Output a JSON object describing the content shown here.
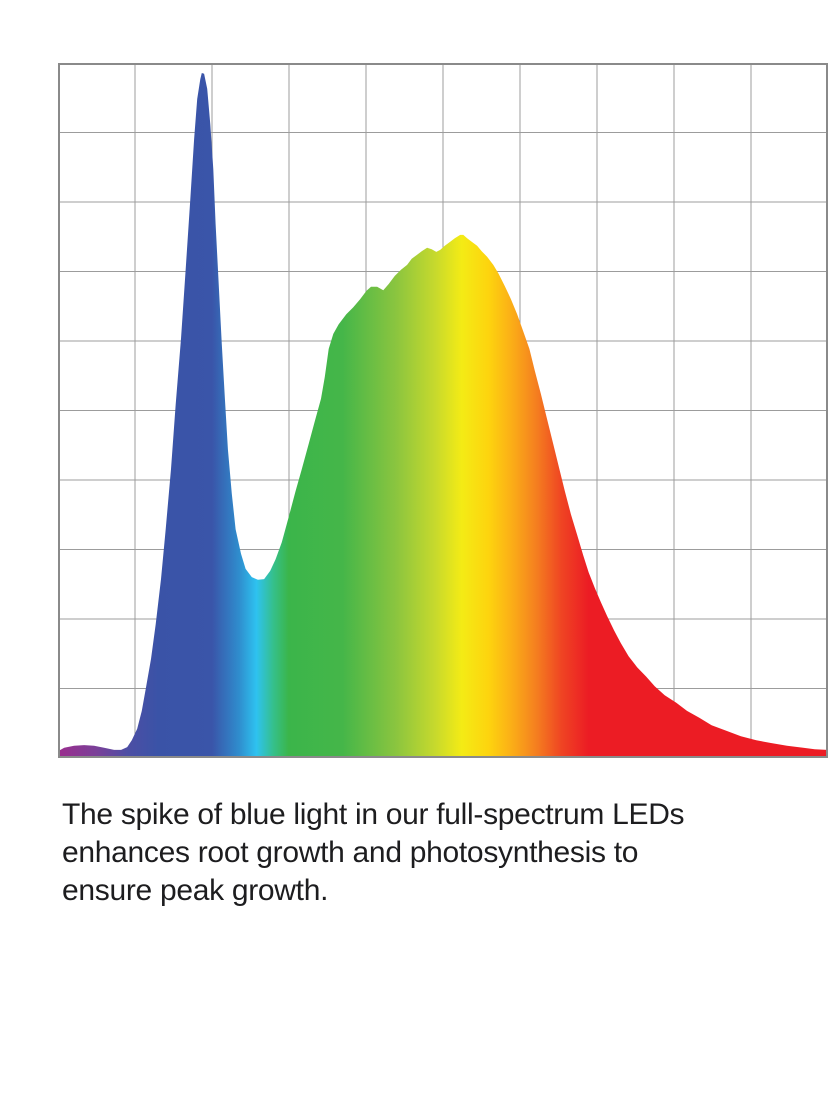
{
  "caption": {
    "text": "The spike of blue light in our full-spectrum LEDs enhances root growth and photosynthesis to ensure peak growth.",
    "lines": [
      "The spike of blue light in our full-spectrum LEDs",
      "enhances root growth and photosynthesis to",
      "ensure peak growth."
    ],
    "color": "#1d1d1f"
  },
  "chart_data": {
    "type": "area",
    "title": "",
    "xlabel": "",
    "ylabel": "",
    "x_axis_note": "unlabeled; wavelength implied by rainbow fill, violet (left) to red (right), approx 380-780 nm",
    "y_axis_note": "unlabeled; relative spectral intensity 0-1",
    "xlim": [
      0,
      1
    ],
    "ylim": [
      0,
      1
    ],
    "grid": {
      "rows": 10,
      "cols": 10,
      "on": true,
      "line_color": "#9c9c9c",
      "border_color": "#8a8a8a",
      "plot_background": "#ffffff"
    },
    "features": {
      "blue_spike": {
        "x_frac": 0.187,
        "intensity": 1.0
      },
      "valley": {
        "x_frac": 0.26,
        "intensity": 0.26
      },
      "broad_yellow_peak": {
        "x_frac": 0.525,
        "intensity": 0.76
      },
      "red_tail_end": {
        "x_frac": 1.0,
        "intensity": 0.01
      }
    },
    "gradient_stops": [
      [
        0.0,
        "#9b2d8e"
      ],
      [
        0.05,
        "#7a4098"
      ],
      [
        0.09,
        "#4d4ea4"
      ],
      [
        0.13,
        "#3a53a7"
      ],
      [
        0.2,
        "#3a55a9"
      ],
      [
        0.235,
        "#2f8ccd"
      ],
      [
        0.258,
        "#2ec2f0"
      ],
      [
        0.28,
        "#35c08b"
      ],
      [
        0.3,
        "#3bb54a"
      ],
      [
        0.37,
        "#45b649"
      ],
      [
        0.44,
        "#8bc53f"
      ],
      [
        0.49,
        "#c6d92d"
      ],
      [
        0.525,
        "#f4eb15"
      ],
      [
        0.56,
        "#fdd40e"
      ],
      [
        0.59,
        "#fbae17"
      ],
      [
        0.62,
        "#f5821f"
      ],
      [
        0.655,
        "#ef4423"
      ],
      [
        0.69,
        "#ec1c24"
      ],
      [
        1.0,
        "#ec1c24"
      ]
    ],
    "series": [
      {
        "name": "full-spectrum LED output",
        "points": [
          [
            0.0,
            0.007
          ],
          [
            0.008,
            0.012
          ],
          [
            0.021,
            0.015
          ],
          [
            0.034,
            0.016
          ],
          [
            0.047,
            0.015
          ],
          [
            0.06,
            0.012
          ],
          [
            0.073,
            0.009
          ],
          [
            0.082,
            0.009
          ],
          [
            0.09,
            0.013
          ],
          [
            0.096,
            0.023
          ],
          [
            0.103,
            0.04
          ],
          [
            0.109,
            0.066
          ],
          [
            0.114,
            0.098
          ],
          [
            0.121,
            0.142
          ],
          [
            0.127,
            0.193
          ],
          [
            0.134,
            0.259
          ],
          [
            0.14,
            0.332
          ],
          [
            0.147,
            0.42
          ],
          [
            0.153,
            0.515
          ],
          [
            0.16,
            0.611
          ],
          [
            0.166,
            0.713
          ],
          [
            0.172,
            0.815
          ],
          [
            0.177,
            0.903
          ],
          [
            0.181,
            0.962
          ],
          [
            0.185,
            0.991
          ],
          [
            0.187,
            1.0
          ],
          [
            0.19,
            0.999
          ],
          [
            0.194,
            0.977
          ],
          [
            0.198,
            0.925
          ],
          [
            0.202,
            0.859
          ],
          [
            0.205,
            0.779
          ],
          [
            0.209,
            0.691
          ],
          [
            0.213,
            0.603
          ],
          [
            0.217,
            0.523
          ],
          [
            0.221,
            0.449
          ],
          [
            0.226,
            0.384
          ],
          [
            0.231,
            0.332
          ],
          [
            0.238,
            0.296
          ],
          [
            0.244,
            0.274
          ],
          [
            0.252,
            0.262
          ],
          [
            0.26,
            0.258
          ],
          [
            0.268,
            0.259
          ],
          [
            0.276,
            0.271
          ],
          [
            0.283,
            0.288
          ],
          [
            0.291,
            0.313
          ],
          [
            0.3,
            0.35
          ],
          [
            0.309,
            0.388
          ],
          [
            0.317,
            0.42
          ],
          [
            0.326,
            0.457
          ],
          [
            0.334,
            0.49
          ],
          [
            0.342,
            0.523
          ],
          [
            0.347,
            0.555
          ],
          [
            0.352,
            0.596
          ],
          [
            0.358,
            0.618
          ],
          [
            0.365,
            0.632
          ],
          [
            0.375,
            0.647
          ],
          [
            0.384,
            0.657
          ],
          [
            0.393,
            0.669
          ],
          [
            0.401,
            0.681
          ],
          [
            0.407,
            0.687
          ],
          [
            0.415,
            0.687
          ],
          [
            0.423,
            0.682
          ],
          [
            0.43,
            0.691
          ],
          [
            0.438,
            0.703
          ],
          [
            0.446,
            0.712
          ],
          [
            0.454,
            0.719
          ],
          [
            0.46,
            0.728
          ],
          [
            0.467,
            0.734
          ],
          [
            0.473,
            0.739
          ],
          [
            0.48,
            0.744
          ],
          [
            0.486,
            0.742
          ],
          [
            0.492,
            0.738
          ],
          [
            0.497,
            0.741
          ],
          [
            0.503,
            0.747
          ],
          [
            0.51,
            0.753
          ],
          [
            0.516,
            0.758
          ],
          [
            0.523,
            0.763
          ],
          [
            0.527,
            0.763
          ],
          [
            0.532,
            0.758
          ],
          [
            0.538,
            0.753
          ],
          [
            0.545,
            0.747
          ],
          [
            0.551,
            0.739
          ],
          [
            0.558,
            0.731
          ],
          [
            0.566,
            0.719
          ],
          [
            0.573,
            0.706
          ],
          [
            0.581,
            0.688
          ],
          [
            0.589,
            0.669
          ],
          [
            0.597,
            0.647
          ],
          [
            0.605,
            0.622
          ],
          [
            0.613,
            0.596
          ],
          [
            0.62,
            0.564
          ],
          [
            0.628,
            0.53
          ],
          [
            0.636,
            0.493
          ],
          [
            0.644,
            0.457
          ],
          [
            0.652,
            0.42
          ],
          [
            0.659,
            0.388
          ],
          [
            0.667,
            0.354
          ],
          [
            0.675,
            0.324
          ],
          [
            0.683,
            0.294
          ],
          [
            0.69,
            0.269
          ],
          [
            0.698,
            0.246
          ],
          [
            0.706,
            0.225
          ],
          [
            0.714,
            0.205
          ],
          [
            0.723,
            0.184
          ],
          [
            0.732,
            0.165
          ],
          [
            0.742,
            0.146
          ],
          [
            0.753,
            0.13
          ],
          [
            0.765,
            0.116
          ],
          [
            0.776,
            0.102
          ],
          [
            0.789,
            0.089
          ],
          [
            0.804,
            0.078
          ],
          [
            0.818,
            0.066
          ],
          [
            0.834,
            0.056
          ],
          [
            0.85,
            0.045
          ],
          [
            0.869,
            0.037
          ],
          [
            0.888,
            0.029
          ],
          [
            0.908,
            0.023
          ],
          [
            0.927,
            0.019
          ],
          [
            0.948,
            0.015
          ],
          [
            0.969,
            0.012
          ],
          [
            0.984,
            0.01
          ],
          [
            1.0,
            0.009
          ]
        ]
      }
    ],
    "legend": null
  }
}
